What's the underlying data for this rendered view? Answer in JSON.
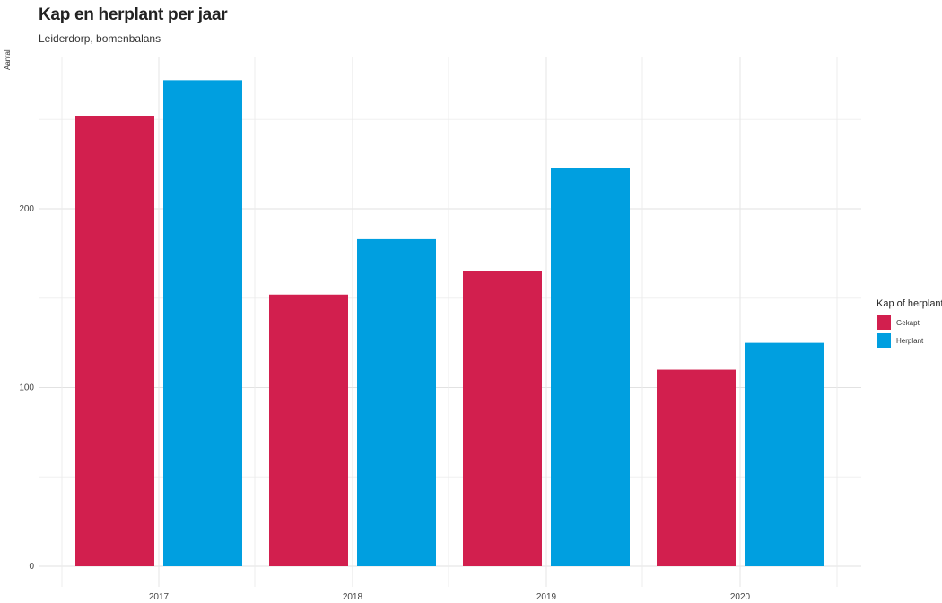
{
  "chart_data": {
    "type": "bar",
    "title": "Kap en herplant per jaar",
    "subtitle": "Leiderdorp, bomenbalans",
    "xlabel": "",
    "ylabel": "Aantal",
    "categories": [
      "2017",
      "2018",
      "2019",
      "2020"
    ],
    "series": [
      {
        "name": "Gekapt",
        "values": [
          252,
          152,
          165,
          110
        ],
        "color": "#d21f4e"
      },
      {
        "name": "Herplant",
        "values": [
          272,
          183,
          223,
          125
        ],
        "color": "#009fe0"
      }
    ],
    "ylim": [
      0,
      285
    ],
    "yticks": [
      0,
      100,
      200
    ],
    "grid": true,
    "legend": {
      "title": "Kap of herplant",
      "position": "right"
    }
  }
}
